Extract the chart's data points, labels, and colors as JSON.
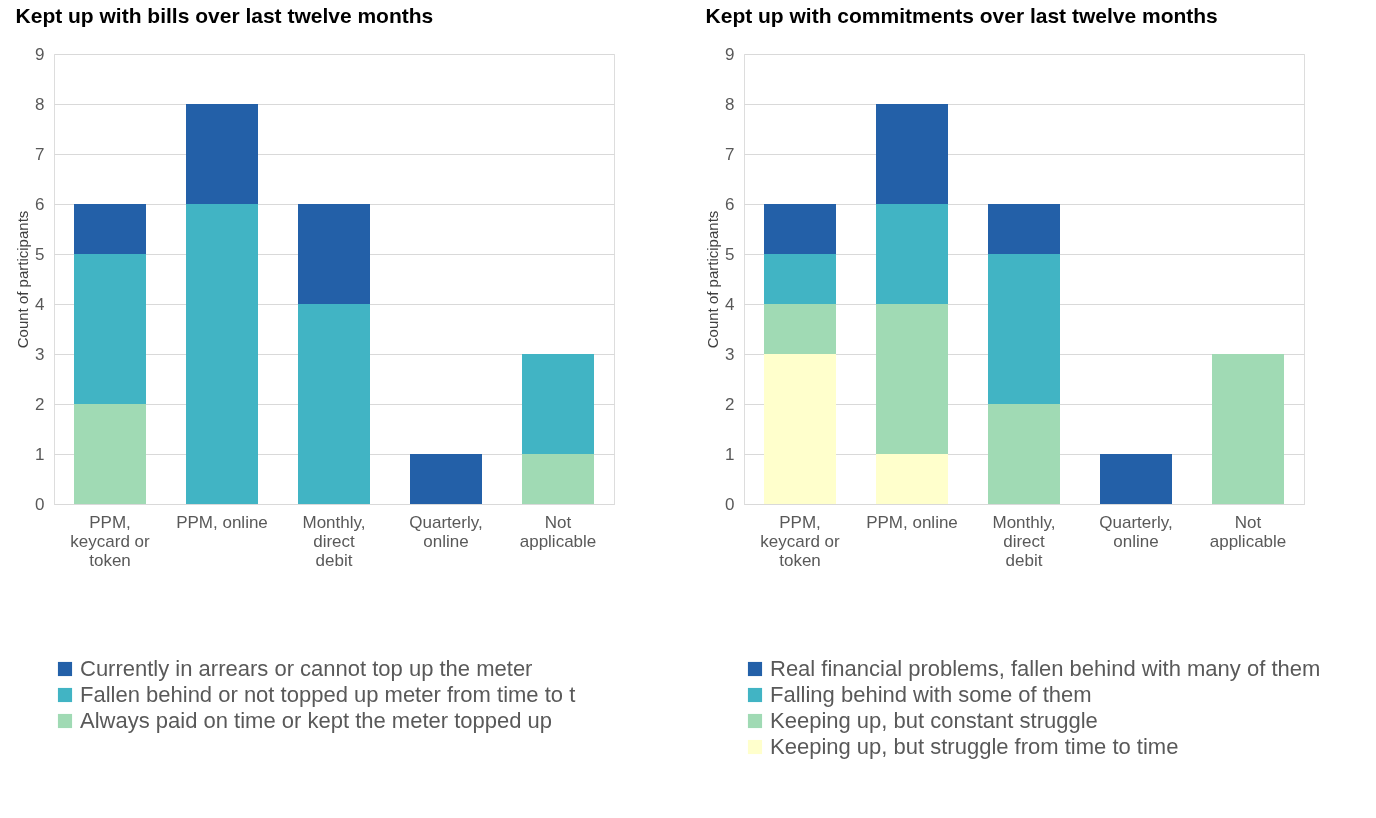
{
  "chart_data": [
    {
      "type": "bar",
      "title": "Kept up with bills over last twelve months",
      "ylabel": "Count of participants",
      "stacked": true,
      "categories": [
        "PPM, keycard or token",
        "PPM, online",
        "Monthly, direct debit",
        "Quarterly, online",
        "Not applicable"
      ],
      "ylim": [
        0,
        9
      ],
      "yticks": [
        0,
        1,
        2,
        3,
        4,
        5,
        6,
        7,
        8,
        9
      ],
      "grid": "y",
      "legend": "bottom",
      "series": [
        {
          "name": "Always paid on time or kept the meter topped up",
          "color": "#a0dab4",
          "values": [
            2,
            0,
            0,
            0,
            1
          ]
        },
        {
          "name": "Fallen behind or not topped up meter from time to t",
          "color": "#41b4c4",
          "values": [
            3,
            6,
            4,
            0,
            2
          ]
        },
        {
          "name": "Currently in arrears or cannot top up the meter",
          "color": "#2360a8",
          "values": [
            1,
            2,
            2,
            1,
            0
          ]
        }
      ]
    },
    {
      "type": "bar",
      "title": "Kept up with commitments over last twelve months",
      "ylabel": "Count of participants",
      "stacked": true,
      "categories": [
        "PPM, keycard or token",
        "PPM, online",
        "Monthly, direct debit",
        "Quarterly, online",
        "Not applicable"
      ],
      "ylim": [
        0,
        9
      ],
      "yticks": [
        0,
        1,
        2,
        3,
        4,
        5,
        6,
        7,
        8,
        9
      ],
      "grid": "y",
      "legend": "bottom",
      "series": [
        {
          "name": "Keeping up, but struggle from time to time",
          "color": "#ffffcc",
          "values": [
            3,
            1,
            0,
            0,
            0
          ]
        },
        {
          "name": "Keeping up, but constant struggle",
          "color": "#a0dab4",
          "values": [
            1,
            3,
            2,
            0,
            3
          ]
        },
        {
          "name": "Falling behind with some of them",
          "color": "#41b4c4",
          "values": [
            1,
            2,
            3,
            0,
            0
          ]
        },
        {
          "name": "Real financial problems, fallen behind with many of them",
          "color": "#2360a8",
          "values": [
            1,
            2,
            1,
            1,
            0
          ]
        }
      ]
    }
  ]
}
